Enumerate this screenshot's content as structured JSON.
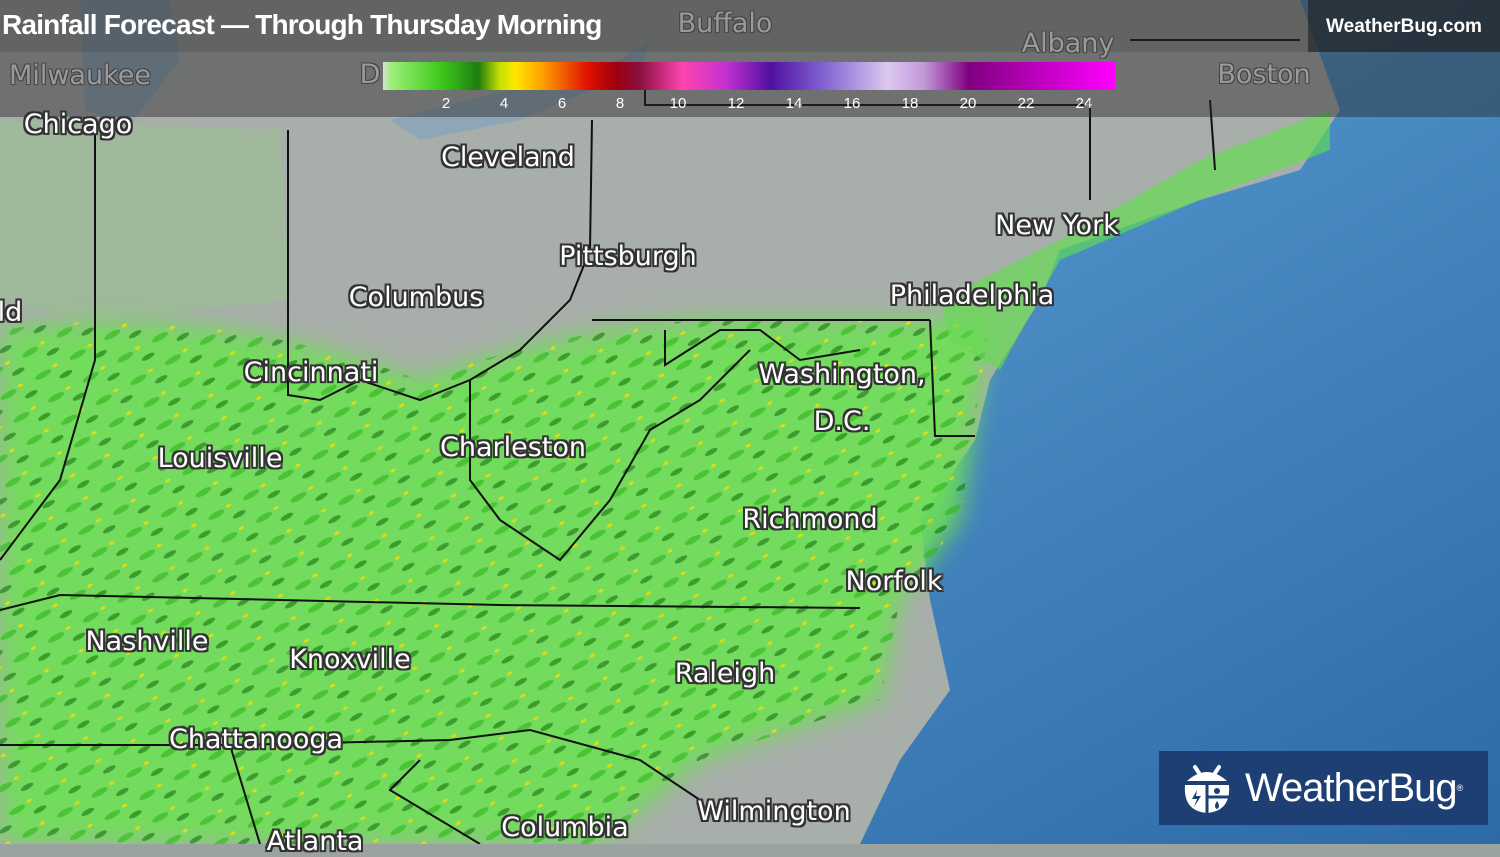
{
  "header": {
    "title": "Rainfall Forecast — Through Thursday Morning",
    "site": "WeatherBug.com"
  },
  "legend": {
    "ticks": [
      "2",
      "4",
      "6",
      "8",
      "10",
      "12",
      "14",
      "16",
      "18",
      "20",
      "22",
      "24"
    ],
    "colors": [
      "#3cc81a",
      "#ffe800",
      "#e01000",
      "#ff44b0",
      "#5010a0",
      "#dcc8f0",
      "#ff00ff"
    ]
  },
  "cities": [
    {
      "name": "Milwaukee",
      "dim": true
    },
    {
      "name": "Buffalo",
      "dim": true
    },
    {
      "name": "Albany",
      "dim": true
    },
    {
      "name": "Boston",
      "dim": true
    },
    {
      "name": "Chicago"
    },
    {
      "name": "Cleveland"
    },
    {
      "name": "Pittsburgh"
    },
    {
      "name": "New York"
    },
    {
      "name": "Columbus"
    },
    {
      "name": "Philadelphia"
    },
    {
      "name": "ld"
    },
    {
      "name": "Cincinnati"
    },
    {
      "name": "Washington,"
    },
    {
      "name": "D.C."
    },
    {
      "name": "Louisville"
    },
    {
      "name": "Charleston"
    },
    {
      "name": "Richmond"
    },
    {
      "name": "Norfolk"
    },
    {
      "name": "Nashville"
    },
    {
      "name": "Knoxville"
    },
    {
      "name": "Raleigh"
    },
    {
      "name": "Chattanooga"
    },
    {
      "name": "Columbia"
    },
    {
      "name": "Wilmington"
    },
    {
      "name": "Atlanta"
    },
    {
      "name": "D",
      "dim": true
    }
  ],
  "logo": {
    "text": "WeatherBug",
    "mark": "®"
  },
  "colors": {
    "ocean": "#3f7fb8",
    "land": "#a7aca8",
    "rain_light": "#5fe04a",
    "rain_heavy": "#e02a10"
  }
}
